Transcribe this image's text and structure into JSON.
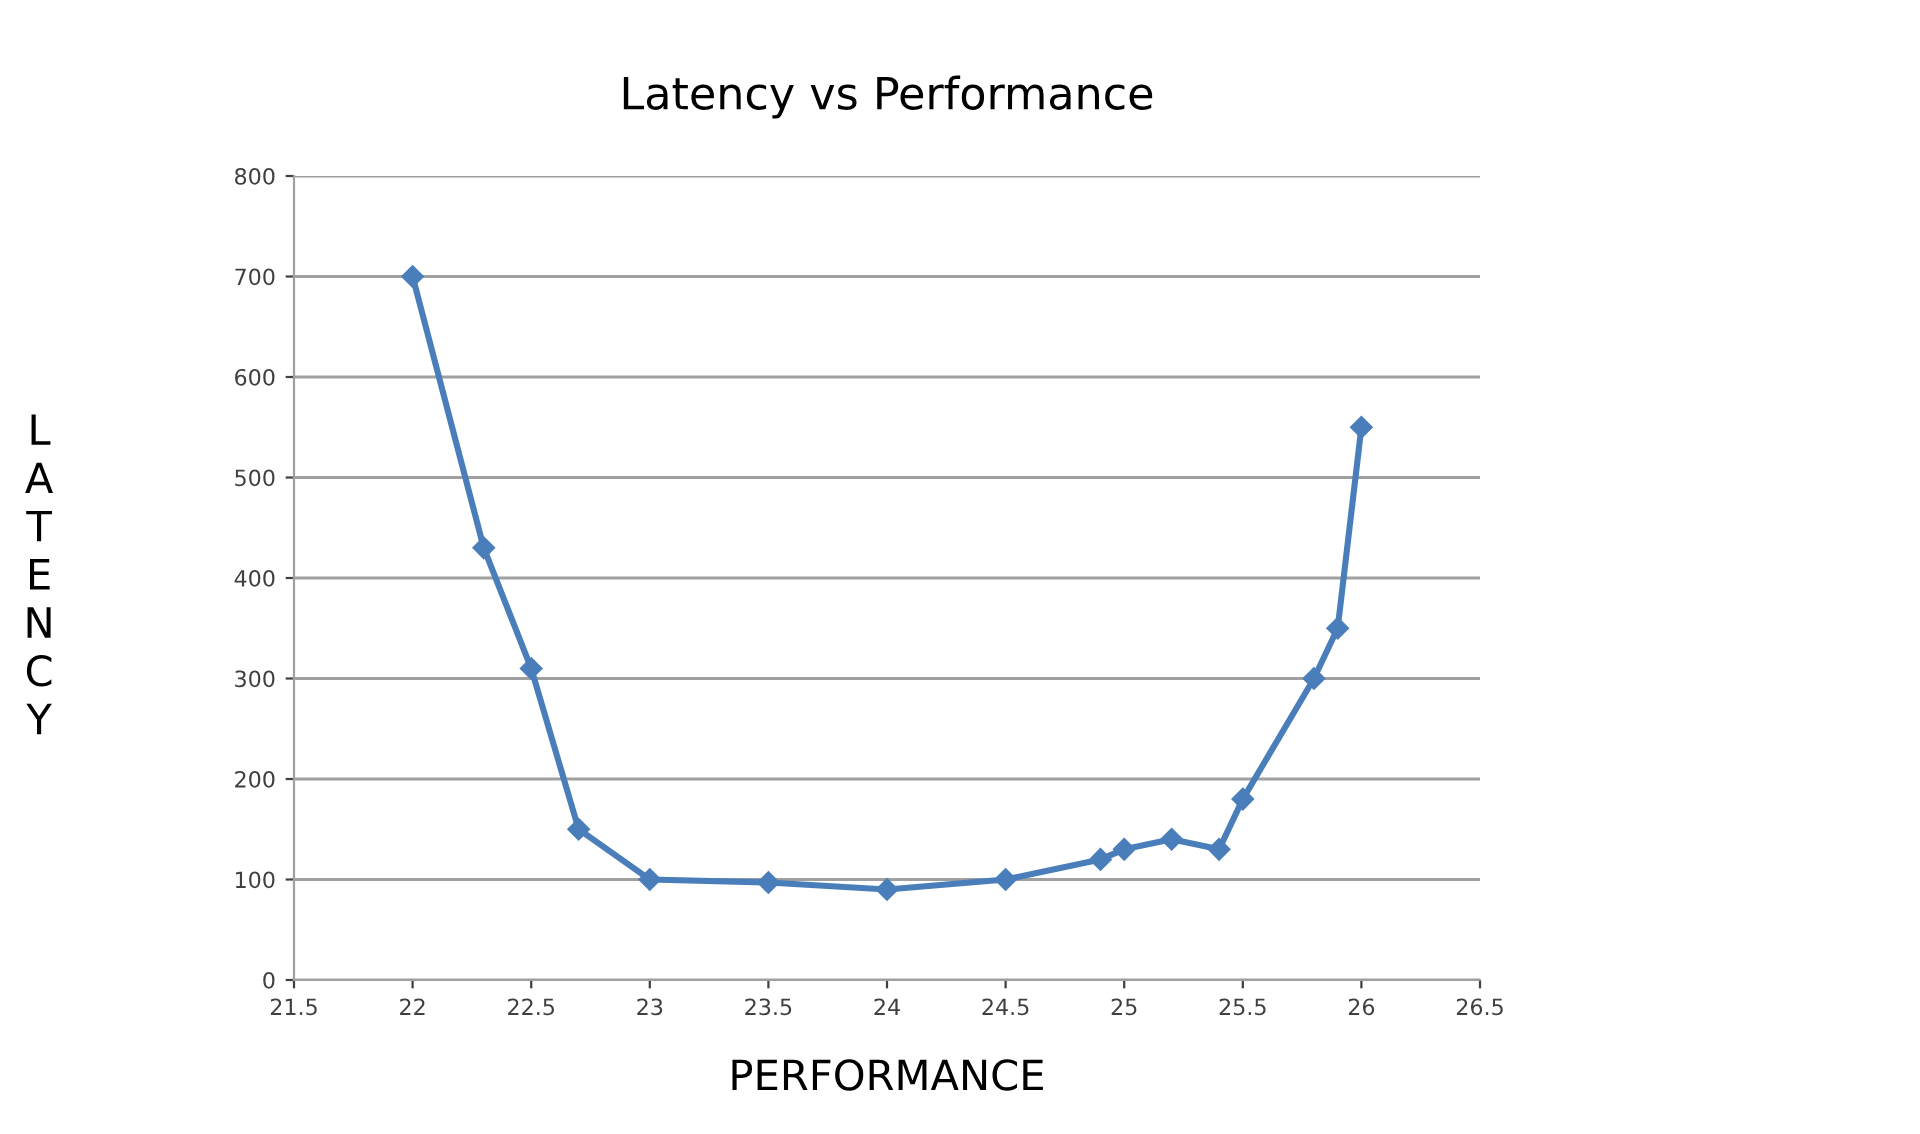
{
  "chart_data": {
    "type": "line",
    "title": "Latency vs Performance",
    "xlabel": "PERFORMANCE",
    "ylabel": "LATENCY",
    "x": [
      22,
      22.3,
      22.5,
      22.7,
      23,
      23.5,
      24,
      24.5,
      24.9,
      25,
      25.2,
      25.4,
      25.5,
      25.8,
      25.9,
      26
    ],
    "series": [
      {
        "color": "#4a7ebb",
        "values": [
          700,
          430,
          310,
          150,
          100,
          97,
          90,
          100,
          120,
          130,
          140,
          130,
          180,
          300,
          350,
          550
        ]
      }
    ],
    "xlim": [
      21.5,
      26.5
    ],
    "xticks": [
      21.5,
      22,
      22.5,
      23,
      23.5,
      24,
      24.5,
      25,
      25.5,
      26,
      26.5
    ],
    "ylim": [
      0,
      800
    ],
    "yticks": [
      0,
      100,
      200,
      300,
      400,
      500,
      600,
      700,
      800
    ],
    "grid": "y",
    "marker": "diamond",
    "line_style": "solid",
    "legend": false
  }
}
